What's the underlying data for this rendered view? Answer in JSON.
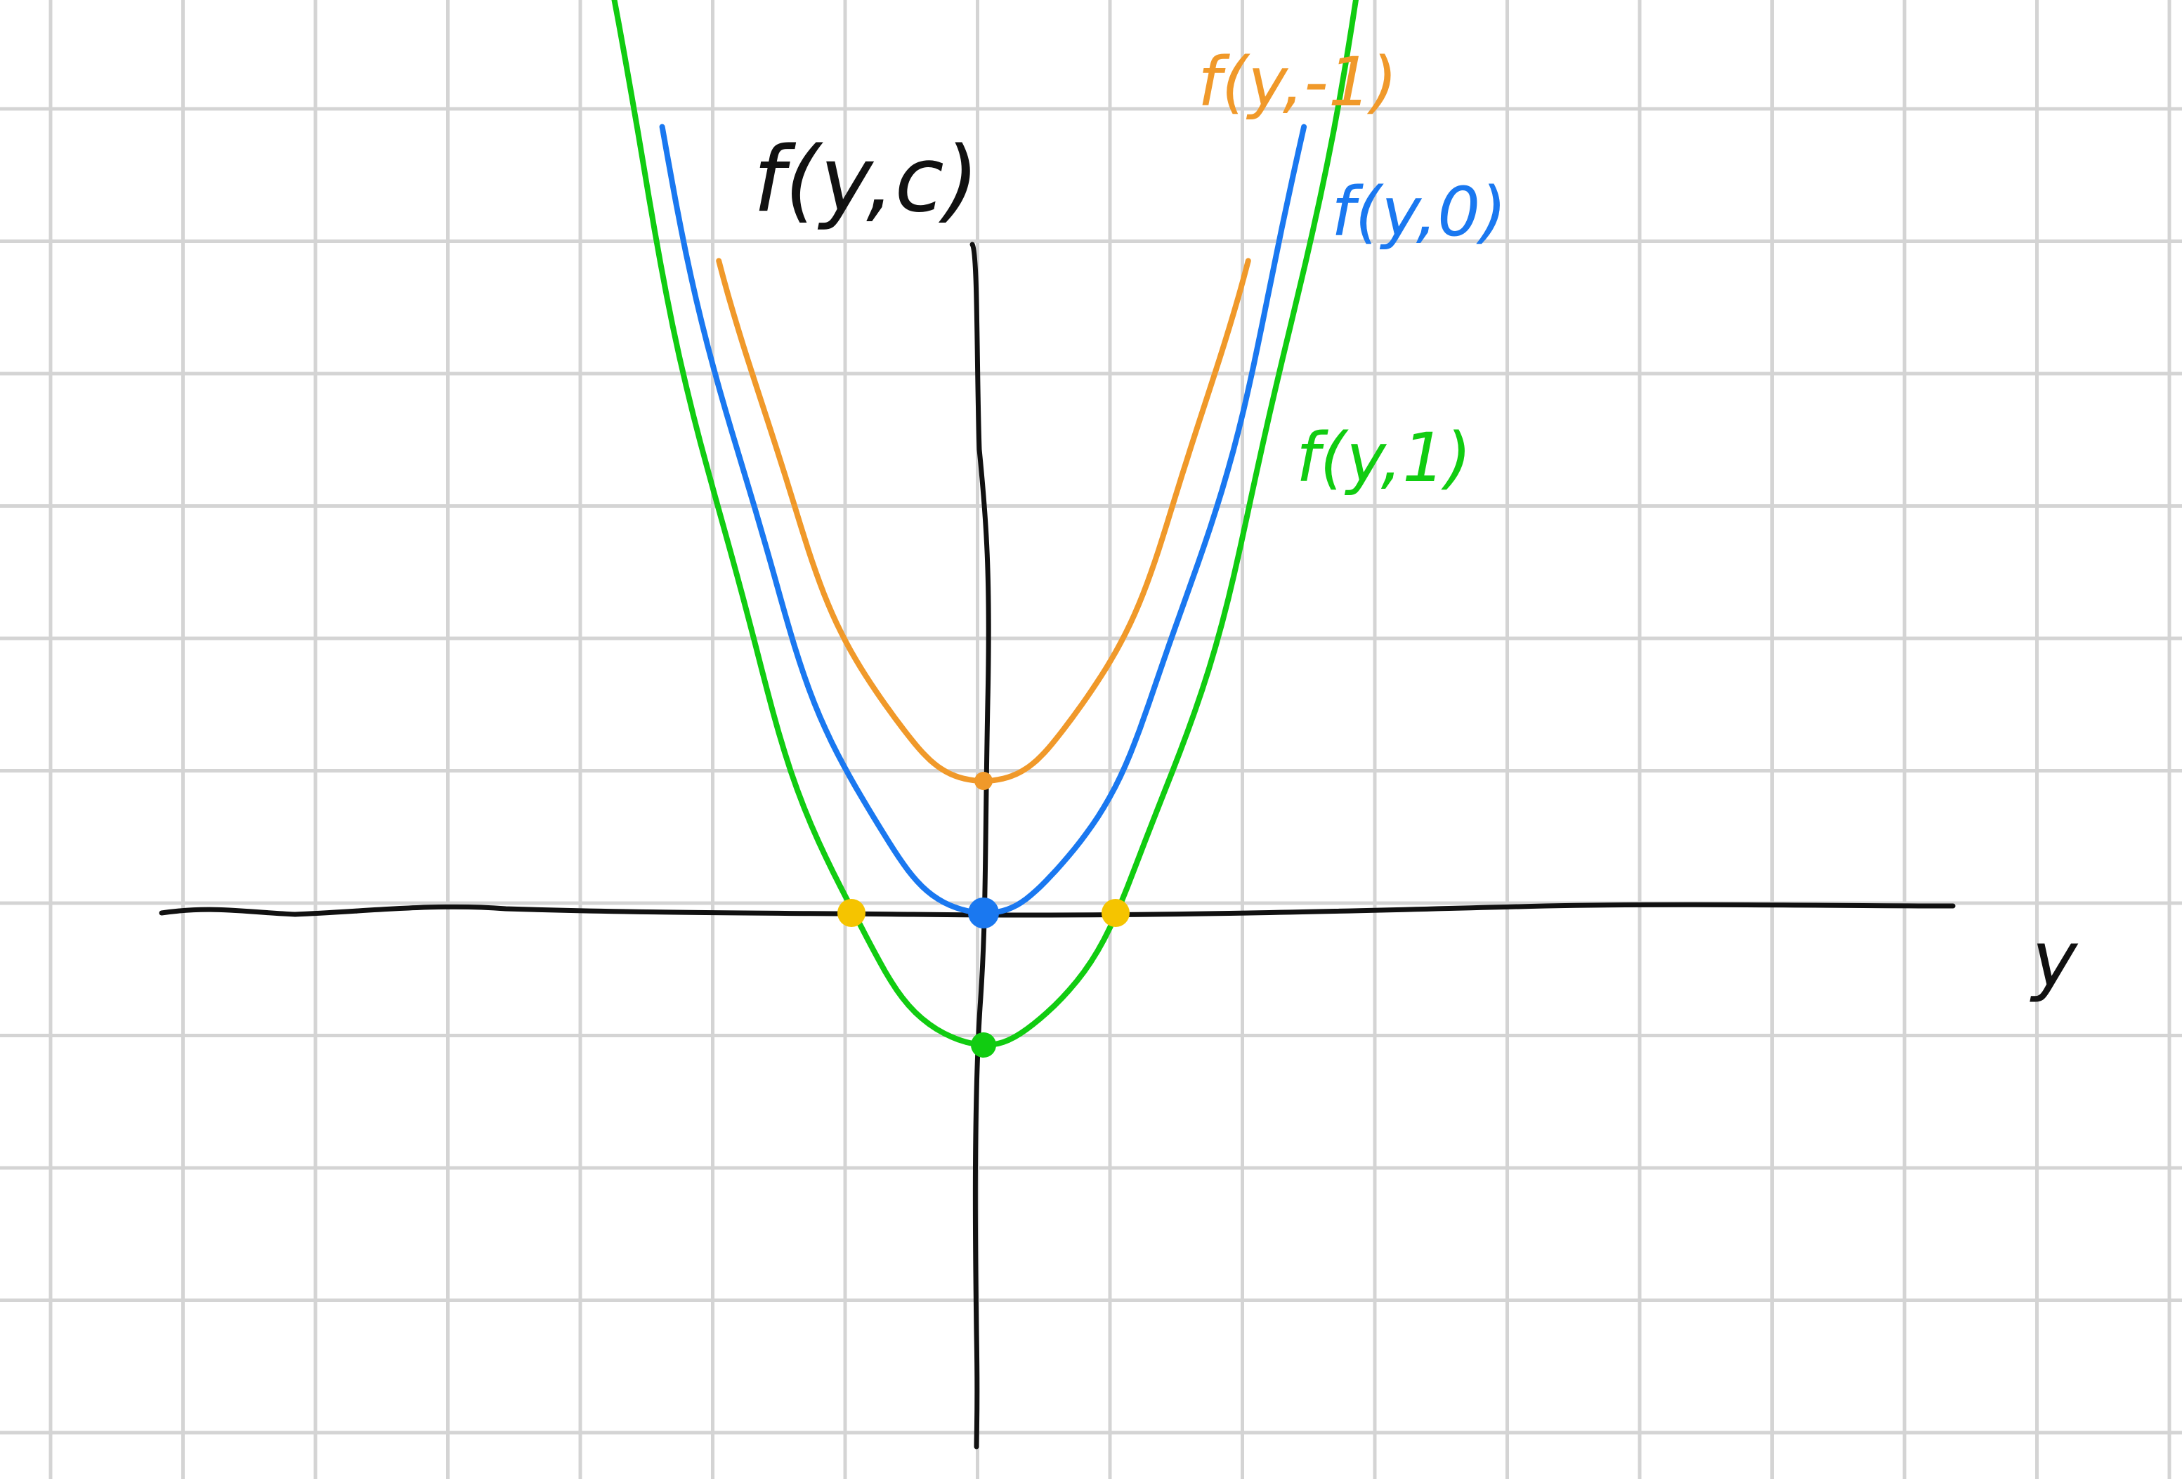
{
  "colors": {
    "grid": "#d4d4d4",
    "axis": "#111111",
    "series": [
      "#f0992a",
      "#1a78f0",
      "#11cc11"
    ],
    "root_point": "#f5c400"
  },
  "chart_data": {
    "type": "line",
    "title": "f(y,c)",
    "xlabel": "y",
    "ylabel": "f(y,c)",
    "xlim": [
      -6.3,
      8.0
    ],
    "ylim": [
      -4.0,
      6.6
    ],
    "grid": true,
    "x": [
      -1.9,
      -1.6,
      -1.3,
      -1.0,
      -0.7,
      -0.4,
      0.0,
      0.4,
      0.7,
      1.0,
      1.3,
      1.6,
      1.9
    ],
    "series": [
      {
        "name": "f(y,-1)",
        "label": "f(y,-1)",
        "values": [
          4.61,
          3.56,
          2.69,
          2.0,
          1.49,
          1.16,
          1.0,
          1.16,
          1.49,
          2.0,
          2.69,
          3.56,
          4.61
        ]
      },
      {
        "name": "f(y,0)",
        "label": "f(y,0)",
        "values": [
          3.61,
          2.56,
          1.69,
          1.0,
          0.49,
          0.16,
          0.0,
          0.16,
          0.49,
          1.0,
          1.69,
          2.56,
          3.61
        ]
      },
      {
        "name": "f(y,1)",
        "label": "f(y,1)",
        "values": [
          2.61,
          1.56,
          0.69,
          0.0,
          -0.51,
          -0.84,
          -1.0,
          -0.84,
          -0.51,
          0.0,
          0.69,
          1.56,
          2.61
        ]
      }
    ],
    "vertices": [
      {
        "series": "f(y,-1)",
        "x": 0,
        "y": 1
      },
      {
        "series": "f(y,0)",
        "x": 0,
        "y": 0
      },
      {
        "series": "f(y,1)",
        "x": 0,
        "y": -1
      }
    ],
    "roots": [
      {
        "series": "f(y,1)",
        "x": -1,
        "y": 0
      },
      {
        "series": "f(y,1)",
        "x": 1,
        "y": 0
      }
    ]
  }
}
